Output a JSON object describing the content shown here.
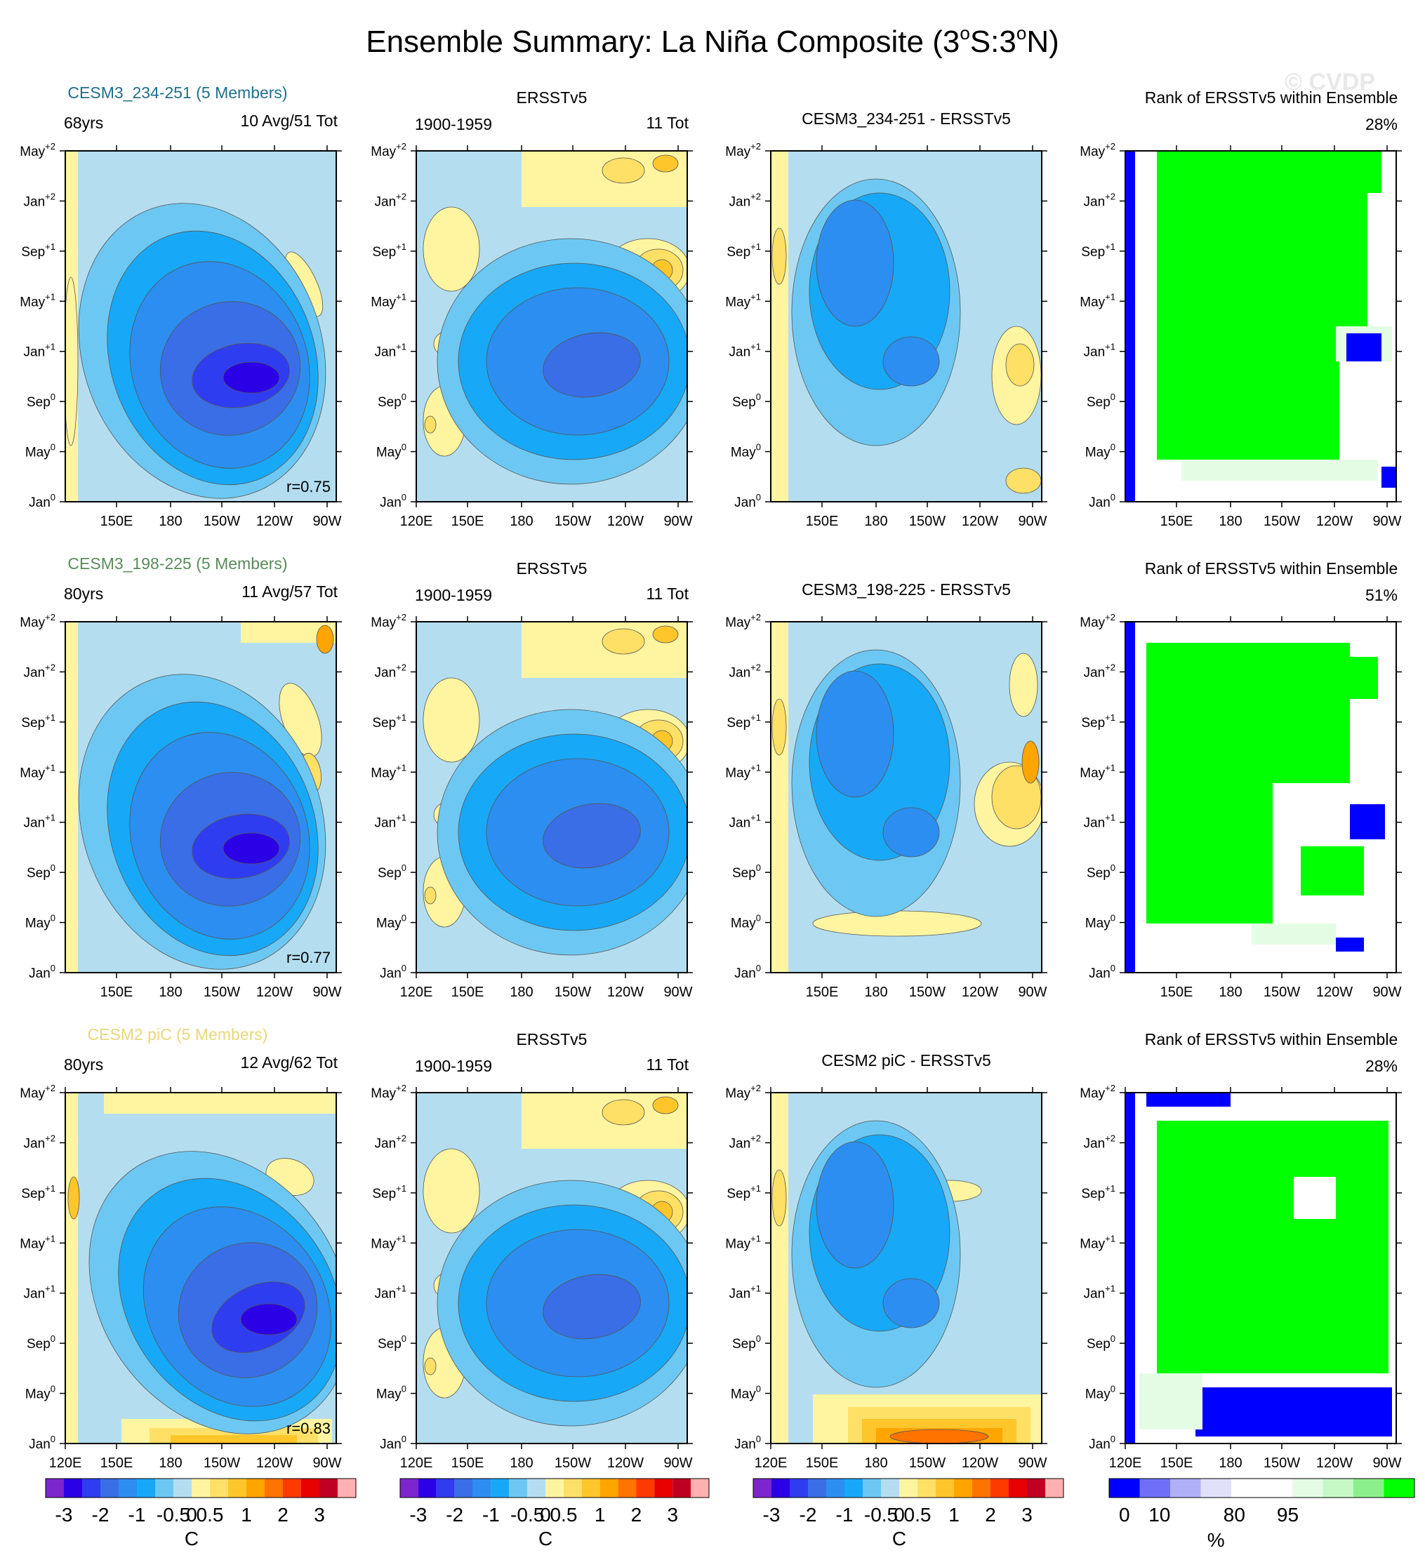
{
  "title": "Ensemble Summary: La Niña Composite (3°S:3°N)",
  "title_main": "Ensemble Summary: La Niña Composite (3",
  "title_o1": "o",
  "title_mid": "S:3",
  "title_o2": "o",
  "title_end": "N)",
  "watermark": "© CVDP",
  "colors": {
    "ens_title_row1": "#1f6f8b",
    "ens_title_row2": "#5a8a5a",
    "ens_title_row3": "#e8d77a",
    "rank_blue": "#0000ff",
    "rank_green": "#00ff00",
    "rank_lightgreen": "#e4fce4"
  },
  "axis": {
    "x_ticks": [
      "120E",
      "150E",
      "180",
      "150W",
      "120W",
      "90W"
    ],
    "x_ticks_no120": [
      "150E",
      "180",
      "150W",
      "120W",
      "90W"
    ],
    "y_ticks": [
      {
        "b": "Jan",
        "s": "0"
      },
      {
        "b": "May",
        "s": "0"
      },
      {
        "b": "Sep",
        "s": "0"
      },
      {
        "b": "Jan",
        "s": "+1"
      },
      {
        "b": "May",
        "s": "+1"
      },
      {
        "b": "Sep",
        "s": "+1"
      },
      {
        "b": "Jan",
        "s": "+2"
      },
      {
        "b": "May",
        "s": "+2"
      }
    ]
  },
  "rows": [
    {
      "ens_title": "CESM3_234-251 (5 Members)",
      "years": "68yrs",
      "avg": "10 Avg/51 Tot",
      "r": "r=0.75",
      "obs_title": "ERSSTv5",
      "obs_years": "1900-1959",
      "obs_tot": "11 Tot",
      "diff_title": "CESM3_234-251 - ERSSTv5",
      "rank_title": "Rank of ERSSTv5 within Ensemble",
      "rank_pct": "28%"
    },
    {
      "ens_title": "CESM3_198-225 (5 Members)",
      "years": "80yrs",
      "avg": "11 Avg/57 Tot",
      "r": "r=0.77",
      "obs_title": "ERSSTv5",
      "obs_years": "1900-1959",
      "obs_tot": "11 Tot",
      "diff_title": "CESM3_198-225 - ERSSTv5",
      "rank_title": "Rank of ERSSTv5 within Ensemble",
      "rank_pct": "51%"
    },
    {
      "ens_title": "CESM2 piC (5 Members)",
      "years": "80yrs",
      "avg": "12 Avg/62 Tot",
      "r": "r=0.83",
      "obs_title": "ERSSTv5",
      "obs_years": "1900-1959",
      "obs_tot": "11 Tot",
      "diff_title": "CESM2 piC - ERSSTv5",
      "rank_title": "Rank of ERSSTv5 within Ensemble",
      "rank_pct": "28%"
    }
  ],
  "colorbar": {
    "sst_colors": [
      "#7d26cd",
      "#2b00e6",
      "#2e3df0",
      "#3a6ee6",
      "#2c8ef0",
      "#18a8f8",
      "#6cc8f2",
      "#b4def0",
      "#fff5a0",
      "#ffe066",
      "#ffc62b",
      "#ffa500",
      "#ff7300",
      "#ff3a00",
      "#e60000",
      "#c00022",
      "#ffb0b0"
    ],
    "sst_labels": [
      "-3",
      "-2",
      "-1",
      "-0.5",
      "0",
      "0.5",
      "1",
      "2",
      "3"
    ],
    "sst_unit": "C",
    "rank_colors": [
      "#0000ff",
      "#6f6ff6",
      "#b0b0f8",
      "#e0e0fb",
      "#ffffff",
      "#ffffff",
      "#e4fce4",
      "#c6f8c6",
      "#8bf08b",
      "#00ff00"
    ],
    "rank_labels": [
      "0",
      "10",
      "80",
      "95"
    ],
    "rank_unit": "%"
  },
  "chart_data": {
    "type": "heatmap",
    "x_domain": [
      "120E",
      "90W"
    ],
    "y_domain": [
      "Jan0",
      "May+2"
    ],
    "panels": [
      {
        "row": 1,
        "col": 1,
        "kind": "ensemble mean composite",
        "units": "C",
        "pattern_r": 0.75,
        "min_approx": -2.2
      },
      {
        "row": 1,
        "col": 2,
        "kind": "observed composite",
        "units": "C",
        "min_approx": -1.6
      },
      {
        "row": 1,
        "col": 3,
        "kind": "difference",
        "units": "C",
        "min_approx": -0.8
      },
      {
        "row": 1,
        "col": 4,
        "kind": "rank",
        "units": "%",
        "rank": 28
      },
      {
        "row": 2,
        "col": 1,
        "kind": "ensemble mean composite",
        "units": "C",
        "pattern_r": 0.77,
        "min_approx": -2.2
      },
      {
        "row": 2,
        "col": 2,
        "kind": "observed composite",
        "units": "C",
        "min_approx": -1.6
      },
      {
        "row": 2,
        "col": 3,
        "kind": "difference",
        "units": "C",
        "max_approx": 1.1
      },
      {
        "row": 2,
        "col": 4,
        "kind": "rank",
        "units": "%",
        "rank": 51
      },
      {
        "row": 3,
        "col": 1,
        "kind": "ensemble mean composite",
        "units": "C",
        "pattern_r": 0.83,
        "min_approx": -2.1
      },
      {
        "row": 3,
        "col": 2,
        "kind": "observed composite",
        "units": "C",
        "min_approx": -1.6
      },
      {
        "row": 3,
        "col": 3,
        "kind": "difference",
        "units": "C",
        "max_approx": 1.0
      },
      {
        "row": 3,
        "col": 4,
        "kind": "rank",
        "units": "%",
        "rank": 28
      }
    ]
  }
}
